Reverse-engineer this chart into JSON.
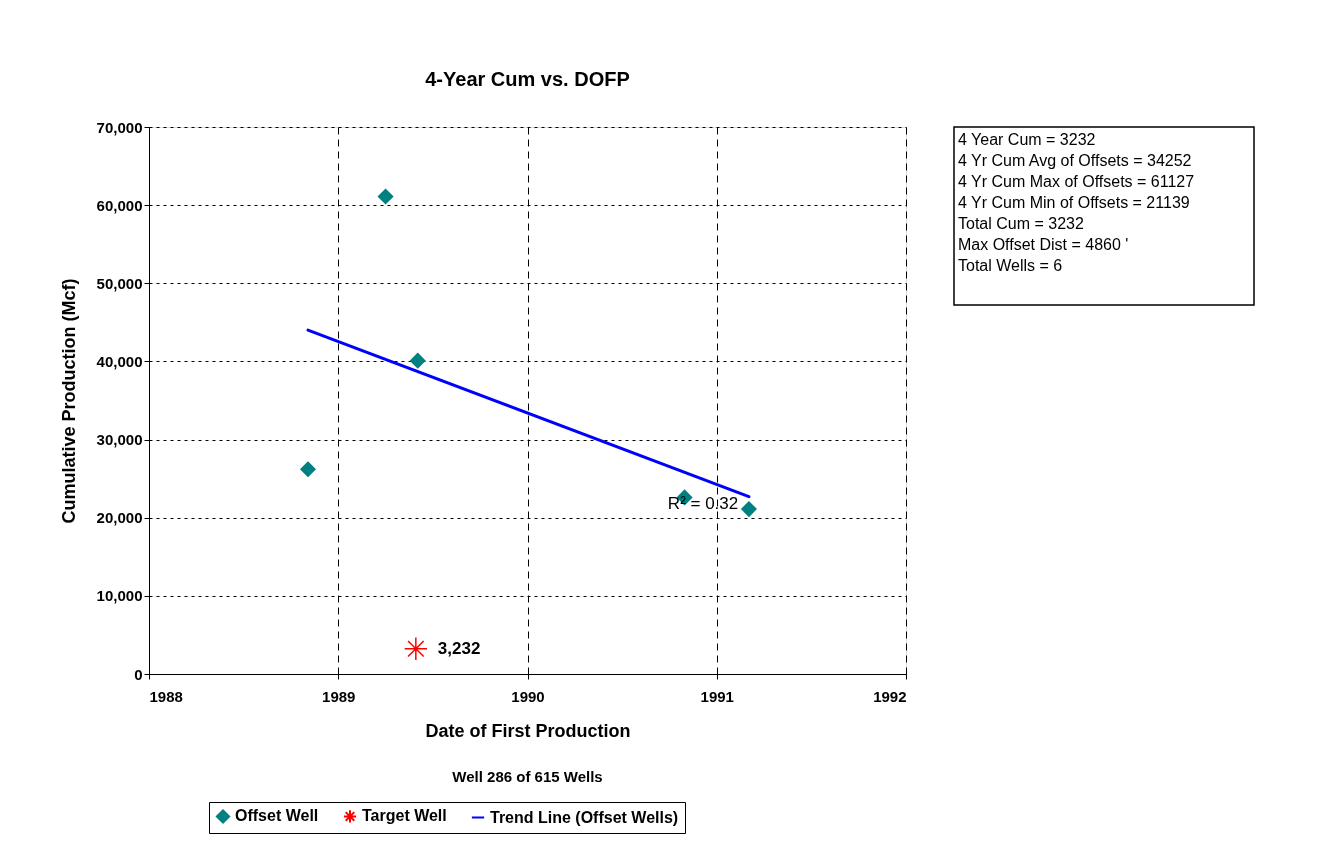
{
  "chart_data": {
    "type": "scatter",
    "title": "4-Year Cum vs. DOFP",
    "xlabel": "Date of First Production",
    "ylabel": "Cumulative Production (Mcf)",
    "xlim": [
      1988,
      1992
    ],
    "xticks": [
      1988,
      1989,
      1990,
      1991,
      1992
    ],
    "ylim": [
      0,
      70000
    ],
    "yticks": [
      {
        "value": 0,
        "label": "0"
      },
      {
        "value": 10000,
        "label": "10,000"
      },
      {
        "value": 20000,
        "label": "20,000"
      },
      {
        "value": 30000,
        "label": "30,000"
      },
      {
        "value": 40000,
        "label": "40,000"
      },
      {
        "value": 50000,
        "label": "50,000"
      },
      {
        "value": 60000,
        "label": "60,000"
      },
      {
        "value": 70000,
        "label": "70,000"
      }
    ],
    "grid": true,
    "legend": "bottom",
    "series": [
      {
        "name": "Offset Well",
        "marker": "diamond",
        "color": "#008080",
        "x": [
          1988.84,
          1989.25,
          1989.42,
          1990.83,
          1991.17
        ],
        "values": [
          26200,
          61100,
          40100,
          22600,
          21100
        ]
      },
      {
        "name": "Target Well",
        "marker": "cross",
        "color": "#ff0000",
        "x": [
          1989.41
        ],
        "values": [
          3232
        ],
        "value_labels": [
          "3,232"
        ]
      },
      {
        "name": "Trend Line (Offset Wells)",
        "type": "line",
        "color": "#0000ff",
        "x": [
          1988.84,
          1991.17
        ],
        "values": [
          44000,
          22700
        ]
      }
    ],
    "annotations": [
      {
        "text": "R² = 0.32",
        "x": 1990.86,
        "y": 22500
      },
      "4 Year Cum = 3232",
      "4 Yr Cum Avg of Offsets = 34252",
      "4 Yr Cum Max of Offsets = 61127",
      "4 Yr Cum Min of Offsets = 21139",
      "Total Cum = 3232",
      "Max Offset Dist = 4860 '",
      "Total Wells =  6",
      "Well 286 of 615 Wells"
    ]
  }
}
